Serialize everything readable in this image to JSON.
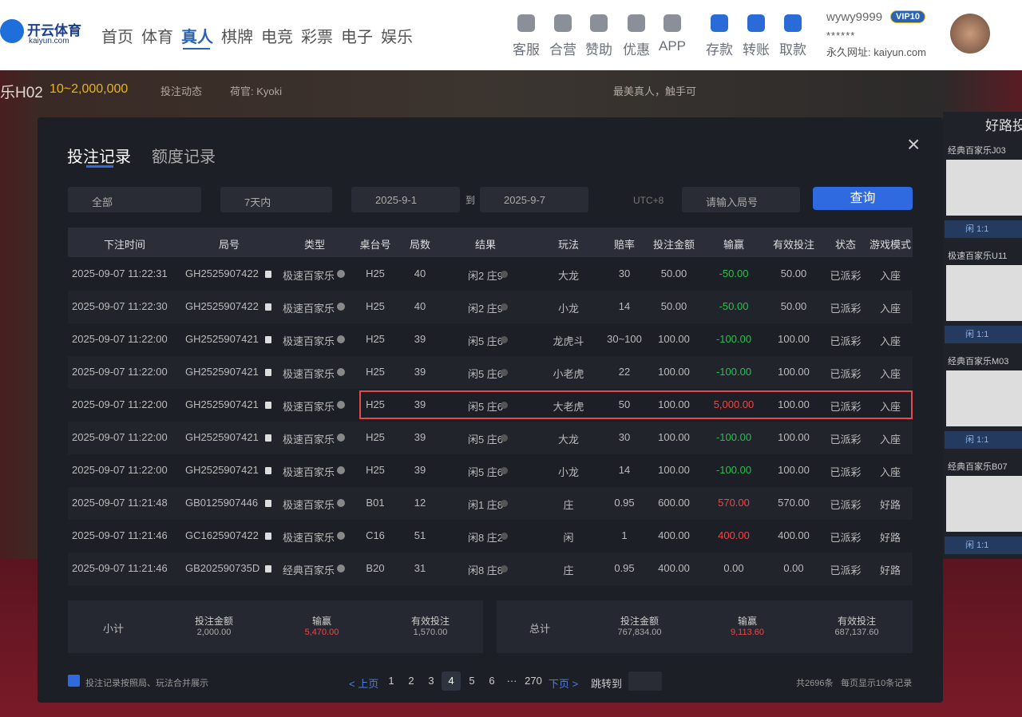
{
  "header": {
    "logo": "开云体育",
    "logo_sub": "kaiyun.com",
    "nav": [
      "首页",
      "体育",
      "真人",
      "棋牌",
      "电竞",
      "彩票",
      "电子",
      "娱乐"
    ],
    "services": [
      "客服",
      "合营",
      "赞助",
      "优惠",
      "APP"
    ],
    "wallet": [
      "存款",
      "转账",
      "取款"
    ],
    "username": "wywy9999",
    "vip": "VIP10",
    "masked": "******",
    "url": "永久网址: kaiyun.com"
  },
  "game_bar": {
    "table": "乐H02",
    "limit": "10~2,000,000",
    "feed": "投注动态",
    "dealer": "荷官: Kyoki",
    "slogan": "最美真人，触手可"
  },
  "side_panel": {
    "title": "好路投",
    "tables": [
      "经典百家乐J03",
      "极速百家乐U11",
      "经典百家乐M03",
      "经典百家乐B07"
    ],
    "odds": "闲 1:1"
  },
  "modal": {
    "tabs": [
      "投注记录",
      "额度记录"
    ],
    "filters": {
      "type": "全部",
      "range": "7天内",
      "start": "2025-9-1",
      "to": "到",
      "end": "2025-9-7",
      "timezone": "UTC+8",
      "round_placeholder": "请输入局号"
    },
    "search_button": "查询",
    "columns": [
      "下注时间",
      "局号",
      "类型",
      "桌台号",
      "局数",
      "结果",
      "玩法",
      "赔率",
      "投注金额",
      "输赢",
      "有效投注",
      "状态",
      "游戏模式"
    ],
    "rows": [
      [
        "2025-09-07 11:22:31",
        "GH2525907422",
        "极速百家乐",
        "H25",
        "40",
        "闲2 庄9",
        "大龙",
        "30",
        "50.00",
        "-50.00",
        "50.00",
        "已派彩",
        "入座"
      ],
      [
        "2025-09-07 11:22:30",
        "GH2525907422",
        "极速百家乐",
        "H25",
        "40",
        "闲2 庄9",
        "小龙",
        "14",
        "50.00",
        "-50.00",
        "50.00",
        "已派彩",
        "入座"
      ],
      [
        "2025-09-07 11:22:00",
        "GH2525907421",
        "极速百家乐",
        "H25",
        "39",
        "闲5 庄6",
        "龙虎斗",
        "30~100",
        "100.00",
        "-100.00",
        "100.00",
        "已派彩",
        "入座"
      ],
      [
        "2025-09-07 11:22:00",
        "GH2525907421",
        "极速百家乐",
        "H25",
        "39",
        "闲5 庄6",
        "小老虎",
        "22",
        "100.00",
        "-100.00",
        "100.00",
        "已派彩",
        "入座"
      ],
      [
        "2025-09-07 11:22:00",
        "GH2525907421",
        "极速百家乐",
        "H25",
        "39",
        "闲5 庄6",
        "大老虎",
        "50",
        "100.00",
        "5,000.00",
        "100.00",
        "已派彩",
        "入座"
      ],
      [
        "2025-09-07 11:22:00",
        "GH2525907421",
        "极速百家乐",
        "H25",
        "39",
        "闲5 庄6",
        "大龙",
        "30",
        "100.00",
        "-100.00",
        "100.00",
        "已派彩",
        "入座"
      ],
      [
        "2025-09-07 11:22:00",
        "GH2525907421",
        "极速百家乐",
        "H25",
        "39",
        "闲5 庄6",
        "小龙",
        "14",
        "100.00",
        "-100.00",
        "100.00",
        "已派彩",
        "入座"
      ],
      [
        "2025-09-07 11:21:48",
        "GB0125907446",
        "极速百家乐",
        "B01",
        "12",
        "闲1 庄8",
        "庄",
        "0.95",
        "600.00",
        "570.00",
        "570.00",
        "已派彩",
        "好路"
      ],
      [
        "2025-09-07 11:21:46",
        "GC1625907422",
        "极速百家乐",
        "C16",
        "51",
        "闲8 庄2",
        "闲",
        "1",
        "400.00",
        "400.00",
        "400.00",
        "已派彩",
        "好路"
      ],
      [
        "2025-09-07 11:21:46",
        "GB202590735D",
        "经典百家乐",
        "B20",
        "31",
        "闲8 庄8",
        "庄",
        "0.95",
        "400.00",
        "0.00",
        "0.00",
        "已派彩",
        "好路"
      ]
    ],
    "subtotal": {
      "label": "小计",
      "items": [
        [
          "投注金额",
          "2,000.00"
        ],
        [
          "输赢",
          "5,470.00"
        ],
        [
          "有效投注",
          "1,570.00"
        ]
      ]
    },
    "total": {
      "label": "总计",
      "items": [
        [
          "投注金额",
          "767,834.00"
        ],
        [
          "输赢",
          "9,113.60"
        ],
        [
          "有效投注",
          "687,137.60"
        ]
      ]
    },
    "merge_option": "投注记录按照局、玩法合并展示",
    "pagination": {
      "prev": "< 上页",
      "pages": [
        "1",
        "2",
        "3",
        "4",
        "5",
        "6",
        "···",
        "270"
      ],
      "next": "下页 >",
      "jump": "跳转到"
    },
    "count": "共2696条",
    "page_size": "每页显示10条记录"
  }
}
